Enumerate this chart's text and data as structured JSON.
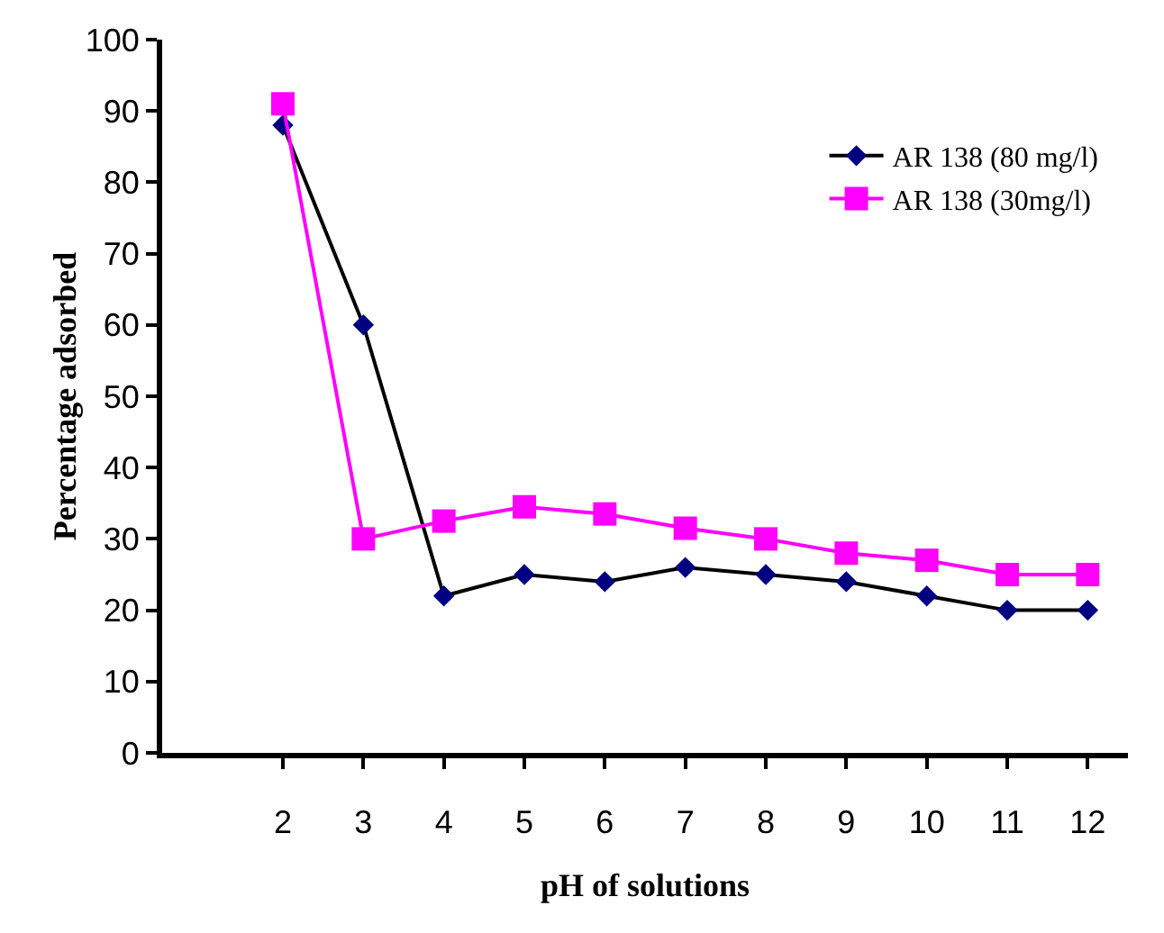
{
  "chart_data": {
    "type": "line",
    "xlabel": "pH of solutions",
    "ylabel": "Percentage adsorbed",
    "categories": [
      null,
      "2",
      "3",
      "4",
      "5",
      "6",
      "7",
      "8",
      "9",
      "10",
      "11",
      "12"
    ],
    "series": [
      {
        "name": "AR 138 (80 mg/l)",
        "color": "#000080",
        "marker": "diamond",
        "values": [
          null,
          88,
          60,
          22,
          25,
          24,
          26,
          25,
          24,
          22,
          20,
          20
        ]
      },
      {
        "name": "AR 138 (30mg/l)",
        "color": "#ff00ff",
        "marker": "square",
        "values": [
          null,
          91,
          30,
          32.5,
          34.5,
          33.5,
          31.5,
          30,
          28,
          27,
          25,
          25
        ]
      }
    ],
    "ylim": [
      0,
      100
    ],
    "yticks": [
      0,
      10,
      20,
      30,
      40,
      50,
      60,
      70,
      80,
      90,
      100
    ],
    "grid": false,
    "legend": "top right",
    "line_style": "solid"
  }
}
